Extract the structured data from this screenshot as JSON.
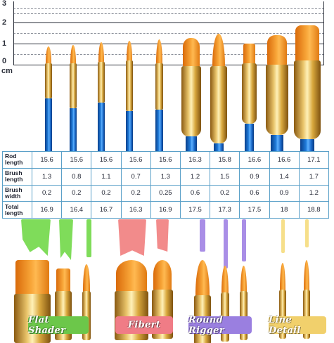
{
  "ruler": {
    "unit": "cm",
    "labels": [
      "3",
      "2",
      "1",
      "0"
    ]
  },
  "table": {
    "row_headers": [
      "Rod length",
      "Brush length",
      "Brush width",
      "Total length"
    ],
    "rows": [
      [
        "15.6",
        "15.6",
        "15.6",
        "15.6",
        "15.6",
        "16.3",
        "15.8",
        "16.6",
        "16.6",
        "17.1"
      ],
      [
        "1.3",
        "0.8",
        "1.1",
        "0.7",
        "1.3",
        "1.2",
        "1.5",
        "0.9",
        "1.4",
        "1.7"
      ],
      [
        "0.2",
        "0.2",
        "0.2",
        "0.2",
        "0.25",
        "0.6",
        "0.2",
        "0.6",
        "0.9",
        "1.2"
      ],
      [
        "16.9",
        "16.4",
        "16.7",
        "16.3",
        "16.9",
        "17.5",
        "17.3",
        "17.5",
        "18",
        "18.8"
      ]
    ]
  },
  "categories": [
    {
      "label": "Flat Shader",
      "color": "#7fdc5a",
      "ribbon": "#6cc74a"
    },
    {
      "label": "Fibert",
      "color": "#f28b8b",
      "ribbon": "#f07c86"
    },
    {
      "label": "Round Rigger",
      "color": "#a98ee6",
      "ribbon": "#9a7fe0"
    },
    {
      "label": "Line Detail",
      "color": "#f6df8a",
      "ribbon": "#f1d06c"
    }
  ],
  "colors": {
    "ferrule": "#e2b44e",
    "hair": "#f59a2b",
    "handle": "#1b6fd0",
    "table_border": "#5aa0c8"
  }
}
